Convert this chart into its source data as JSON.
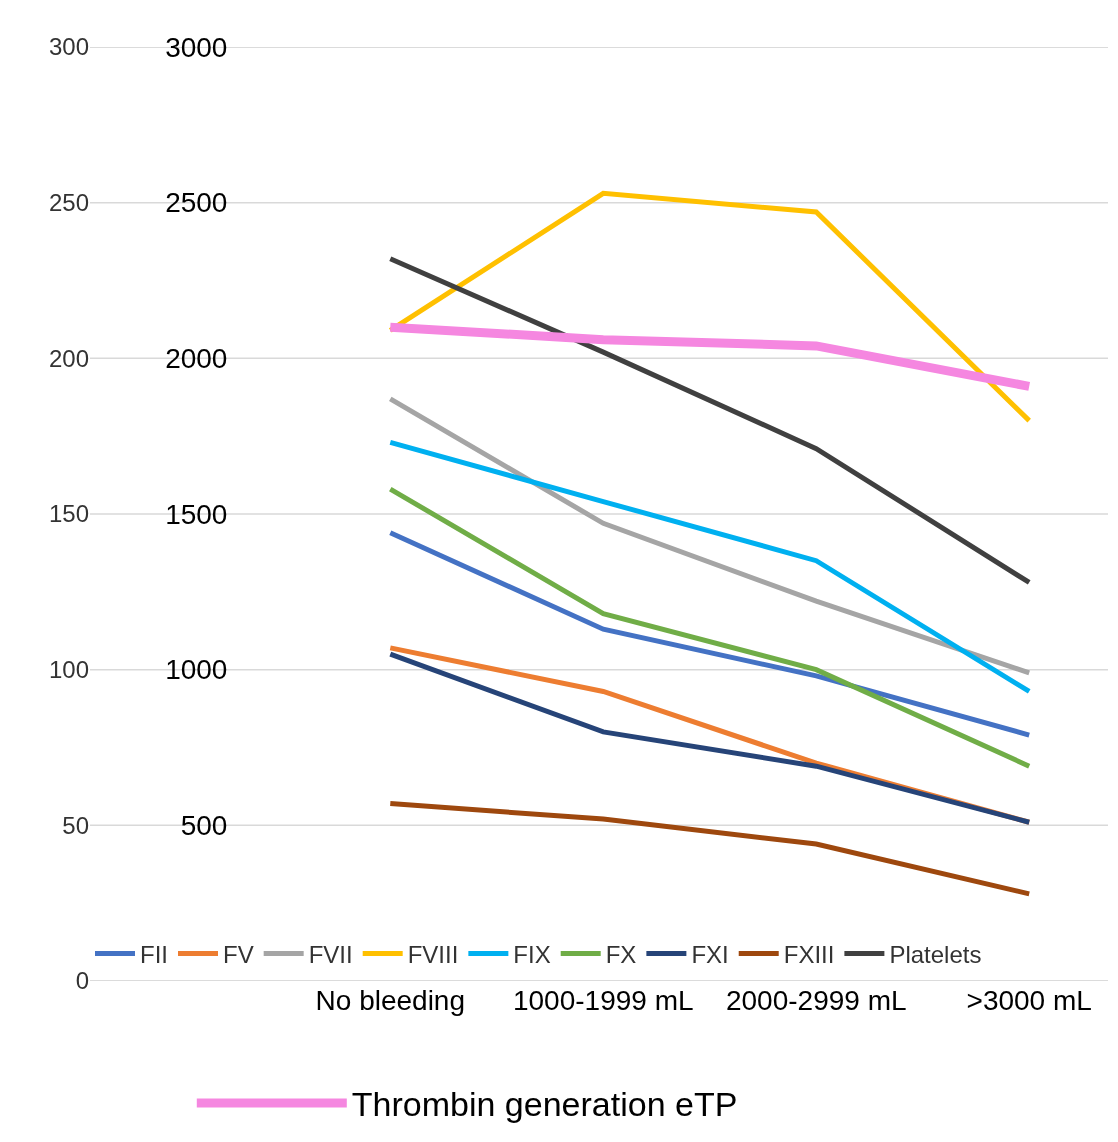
{
  "chart_data": {
    "type": "line",
    "categories": [
      "No bleeding",
      "1000-1999 mL",
      "2000-2999 mL",
      ">3000 mL"
    ],
    "series": [
      {
        "name": "FII",
        "color": "#4472c4",
        "values": [
          144,
          113,
          98,
          79
        ]
      },
      {
        "name": "FV",
        "color": "#ed7d31",
        "values": [
          107,
          93,
          70,
          51
        ]
      },
      {
        "name": "FVII",
        "color": "#a5a5a5",
        "values": [
          187,
          147,
          122,
          99
        ]
      },
      {
        "name": "FVIII",
        "color": "#ffc000",
        "values": [
          209,
          253,
          247,
          180
        ]
      },
      {
        "name": "FIX",
        "color": "#00b0f0",
        "values": [
          173,
          154,
          135,
          93
        ]
      },
      {
        "name": "FX",
        "color": "#70ad47",
        "values": [
          158,
          118,
          100,
          69
        ]
      },
      {
        "name": "FXI",
        "color": "#264478",
        "values": [
          105,
          80,
          69,
          51
        ]
      },
      {
        "name": "FXIII",
        "color": "#9e480e",
        "values": [
          57,
          52,
          44,
          28
        ]
      },
      {
        "name": "Platelets",
        "color": "#404040",
        "values": [
          232,
          202,
          171,
          128
        ]
      },
      {
        "name": "Thrombin generation eTP",
        "color": "#f587e0",
        "axis": "y2",
        "values": [
          2100,
          2060,
          2040,
          1910
        ]
      }
    ],
    "ylim": [
      0,
      300
    ],
    "yticks": [
      0,
      50,
      100,
      150,
      200,
      250,
      300
    ],
    "y2lim": [
      0,
      3000
    ],
    "y2ticks": [
      500,
      1000,
      1500,
      2000,
      2500,
      3000
    ],
    "grid": "y",
    "legend": "bottom",
    "marker": "none",
    "line_style": "solid"
  }
}
